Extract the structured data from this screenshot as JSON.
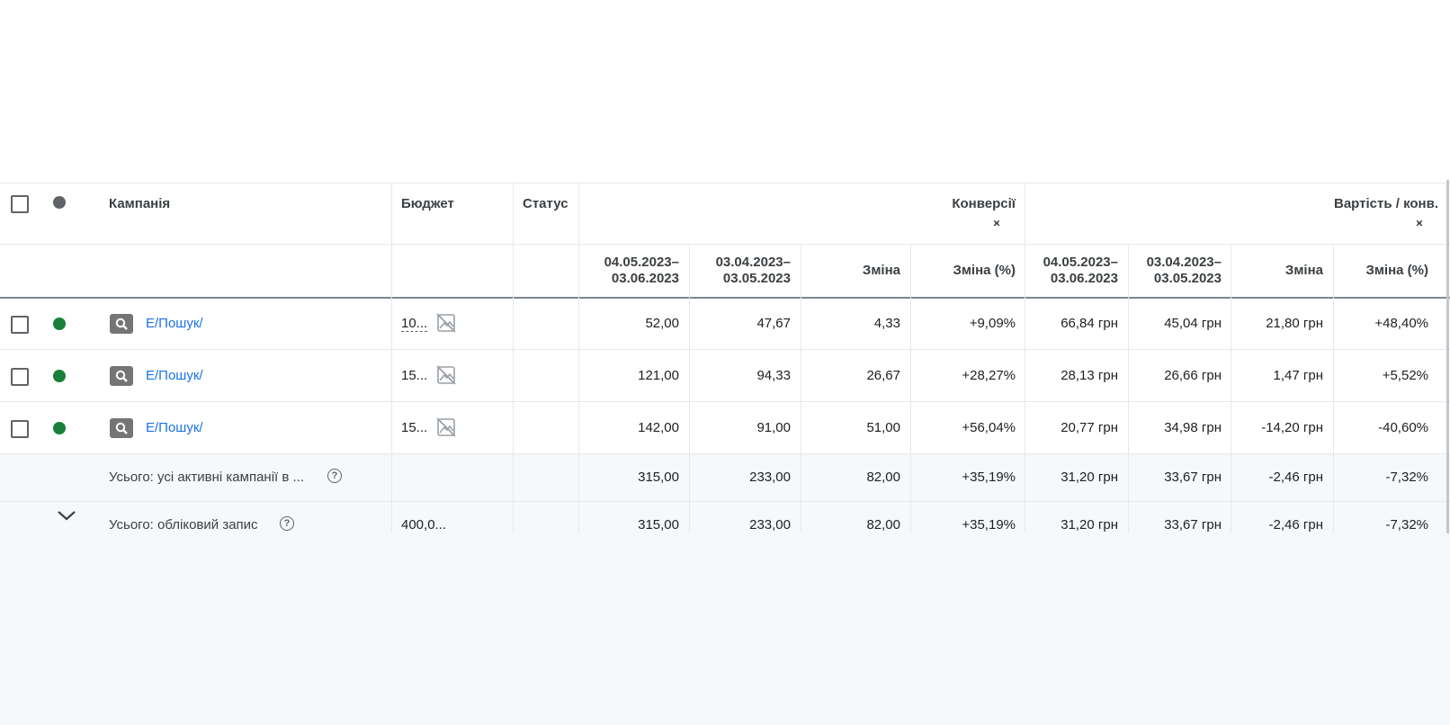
{
  "header": {
    "campaign": "Кампанія",
    "budget": "Бюджет",
    "status": "Статус",
    "group1": "Конверсії",
    "group2": "Вартість / конв.",
    "collapse_glyph": "›‹",
    "sub": {
      "period1_a": "04.05.2023–",
      "period1_b": "03.06.2023",
      "period2_a": "03.04.2023–",
      "period2_b": "03.05.2023",
      "change": "Зміна",
      "change_pct": "Зміна (%)"
    }
  },
  "rows": [
    {
      "name": "E/Пошук/",
      "budget": "10...",
      "conv_cur": "52,00",
      "conv_prev": "47,67",
      "conv_chg": "4,33",
      "conv_pct": "+9,09%",
      "cpa_cur": "66,84 грн",
      "cpa_prev": "45,04 грн",
      "cpa_chg": "21,80 грн",
      "cpa_pct": "+48,40%"
    },
    {
      "name": "E/Пошук/",
      "budget": "15...",
      "conv_cur": "121,00",
      "conv_prev": "94,33",
      "conv_chg": "26,67",
      "conv_pct": "+28,27%",
      "cpa_cur": "28,13 грн",
      "cpa_prev": "26,66 грн",
      "cpa_chg": "1,47 грн",
      "cpa_pct": "+5,52%"
    },
    {
      "name": "E/Пошук/",
      "budget": "15...",
      "conv_cur": "142,00",
      "conv_prev": "91,00",
      "conv_chg": "51,00",
      "conv_pct": "+56,04%",
      "cpa_cur": "20,77 грн",
      "cpa_prev": "34,98 грн",
      "cpa_chg": "-14,20 грн",
      "cpa_pct": "-40,60%"
    }
  ],
  "totals": [
    {
      "label": "Усього: усі активні кампанії в ...",
      "budget": "",
      "conv_cur": "315,00",
      "conv_prev": "233,00",
      "conv_chg": "82,00",
      "conv_pct": "+35,19%",
      "cpa_cur": "31,20 грн",
      "cpa_prev": "33,67 грн",
      "cpa_chg": "-2,46 грн",
      "cpa_pct": "-7,32%"
    },
    {
      "label": "Усього: обліковий запис",
      "budget": "400,0...",
      "conv_cur": "315,00",
      "conv_prev": "233,00",
      "conv_chg": "82,00",
      "conv_pct": "+35,19%",
      "cpa_cur": "31,20 грн",
      "cpa_prev": "33,67 грн",
      "cpa_chg": "-2,46 грн",
      "cpa_pct": "-7,32%"
    }
  ],
  "icons": {
    "status_header": "status-dot-icon",
    "enabled": "enabled-status-icon",
    "campaign_type": "search-icon",
    "image_off": "image-off-icon",
    "help": "help-icon",
    "expand": "chevron-down-icon"
  },
  "colors": {
    "link": "#1a73e8",
    "enabled": "#188038",
    "header_dot": "#5f6368",
    "totals_bg": "#f6f8fa"
  }
}
